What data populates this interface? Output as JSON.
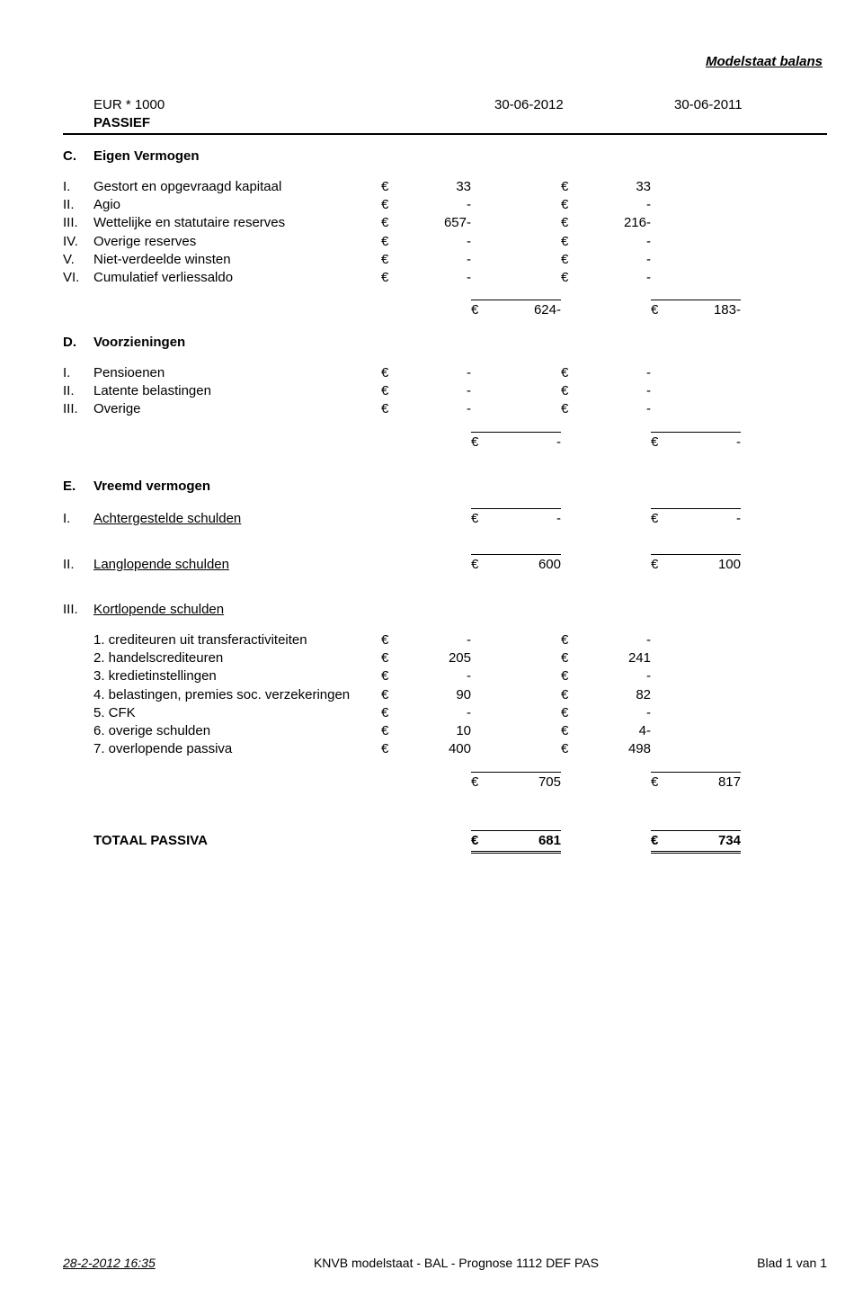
{
  "docTitle": "Modelstaat balans",
  "header": {
    "eur": "EUR * 1000",
    "passief": "PASSIEF",
    "date1": "30-06-2012",
    "date2": "30-06-2011"
  },
  "sections": {
    "C": {
      "letter": "C.",
      "title": "Eigen Vermogen"
    },
    "D": {
      "letter": "D.",
      "title": "Voorzieningen"
    },
    "E": {
      "letter": "E.",
      "title": "Vreemd vermogen"
    }
  },
  "C_rows": [
    {
      "n": "I.",
      "label": "Gestort en opgevraagd kapitaal",
      "v1": "33",
      "v2": "33"
    },
    {
      "n": "II.",
      "label": "Agio",
      "v1": "-",
      "v2": "-"
    },
    {
      "n": "III.",
      "label": "Wettelijke en statutaire reserves",
      "v1": "657-",
      "v2": "216-"
    },
    {
      "n": "IV.",
      "label": "Overige reserves",
      "v1": "-",
      "v2": "-"
    },
    {
      "n": "V.",
      "label": "Niet-verdeelde winsten",
      "v1": "-",
      "v2": "-"
    },
    {
      "n": "VI.",
      "label": "Cumulatief verliessaldo",
      "v1": "-",
      "v2": "-"
    }
  ],
  "C_total": {
    "v1": "624-",
    "v2": "183-"
  },
  "D_rows": [
    {
      "n": "I.",
      "label": "Pensioenen",
      "v1": "-",
      "v2": "-"
    },
    {
      "n": "II.",
      "label": "Latente belastingen",
      "v1": "-",
      "v2": "-"
    },
    {
      "n": "III.",
      "label": "Overige",
      "v1": "-",
      "v2": "-"
    }
  ],
  "D_total": {
    "v1": "-",
    "v2": "-"
  },
  "E_I": {
    "n": "I.",
    "label": "Achtergestelde schulden",
    "v1": "-",
    "v2": "-"
  },
  "E_II": {
    "n": "II.",
    "label": "Langlopende schulden",
    "v1": "600",
    "v2": "100"
  },
  "E_III": {
    "n": "III.",
    "label": "Kortlopende schulden"
  },
  "E_III_rows": [
    {
      "n": "1.",
      "label": "crediteuren uit transferactiviteiten",
      "v1": "-",
      "v2": "-"
    },
    {
      "n": "2.",
      "label": "handelscrediteuren",
      "v1": "205",
      "v2": "241"
    },
    {
      "n": "3.",
      "label": "kredietinstellingen",
      "v1": "-",
      "v2": "-"
    },
    {
      "n": "4.",
      "label": "belastingen, premies soc. verzekeringen",
      "v1": "90",
      "v2": "82"
    },
    {
      "n": "5.",
      "label": "CFK",
      "v1": "-",
      "v2": "-"
    },
    {
      "n": "6.",
      "label": "overige schulden",
      "v1": "10",
      "v2": "4-"
    },
    {
      "n": "7.",
      "label": "overlopende passiva",
      "v1": "400",
      "v2": "498"
    }
  ],
  "E_III_total": {
    "v1": "705",
    "v2": "817"
  },
  "grand": {
    "label": "TOTAAL PASSIVA",
    "v1": "681",
    "v2": "734"
  },
  "footer": {
    "timestamp": "28-2-2012 16:35",
    "center": "KNVB modelstaat - BAL - Prognose 1112 DEF PAS",
    "page": "Blad 1 van 1"
  },
  "euro": "€"
}
